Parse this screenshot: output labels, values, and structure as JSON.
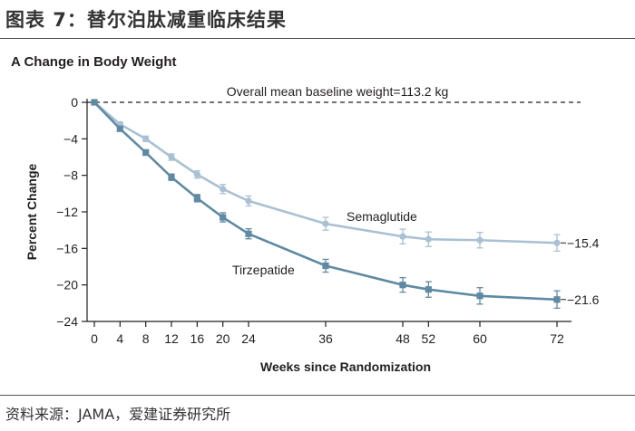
{
  "header": {
    "figure_title": "图表 7：替尔泊肽减重临床结果",
    "source": "资料来源：JAMA，爱建证券研究所"
  },
  "chart_data": {
    "type": "line",
    "panel_title": "A  Change in Body Weight",
    "xlabel": "Weeks since Randomization",
    "ylabel": "Percent Change",
    "xlim": [
      0,
      72
    ],
    "ylim": [
      -24,
      0
    ],
    "x_ticks": [
      0,
      4,
      8,
      12,
      16,
      20,
      24,
      36,
      48,
      52,
      60,
      72
    ],
    "y_ticks": [
      0,
      -4,
      -8,
      -12,
      -16,
      -20,
      -24
    ],
    "baseline_note": "Overall mean baseline weight=113.2 kg",
    "series": [
      {
        "name": "Semaglutide",
        "color": "#a9c1d3",
        "x": [
          0,
          4,
          8,
          12,
          16,
          20,
          24,
          36,
          48,
          52,
          60,
          72
        ],
        "values": [
          0,
          -2.4,
          -4.0,
          -6.0,
          -7.9,
          -9.5,
          -10.8,
          -13.3,
          -14.7,
          -15.0,
          -15.1,
          -15.4
        ],
        "err": [
          0,
          0.25,
          0.3,
          0.35,
          0.4,
          0.5,
          0.55,
          0.7,
          0.8,
          0.8,
          0.85,
          0.9
        ],
        "end_label": "−15.4"
      },
      {
        "name": "Tirzepatide",
        "color": "#5f8aa3",
        "x": [
          0,
          4,
          8,
          12,
          16,
          20,
          24,
          36,
          48,
          52,
          60,
          72
        ],
        "values": [
          0,
          -2.9,
          -5.5,
          -8.2,
          -10.5,
          -12.6,
          -14.4,
          -17.9,
          -20.0,
          -20.5,
          -21.2,
          -21.6
        ],
        "err": [
          0,
          0.25,
          0.3,
          0.35,
          0.4,
          0.5,
          0.55,
          0.7,
          0.8,
          0.85,
          0.9,
          0.95
        ],
        "end_label": "−21.6"
      }
    ]
  }
}
